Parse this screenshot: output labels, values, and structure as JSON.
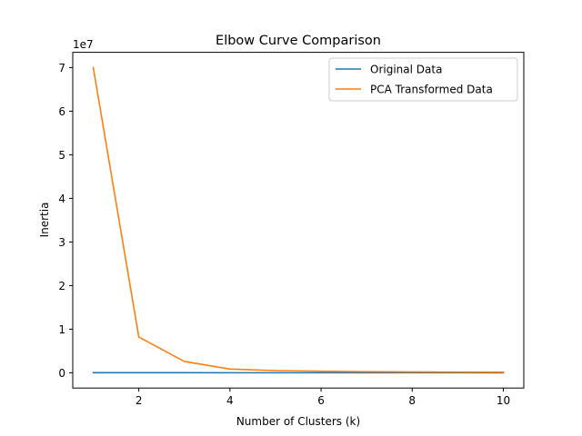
{
  "chart_data": {
    "type": "line",
    "title": "Elbow Curve Comparison",
    "xlabel": "Number of Clusters (k)",
    "ylabel": "Inertia",
    "y_offset_label": "1e7",
    "x": [
      1,
      2,
      3,
      4,
      5,
      6,
      7,
      8,
      9,
      10
    ],
    "xlim": [
      0.55,
      10.45
    ],
    "ylim": [
      -3500000,
      73500000
    ],
    "xticks": [
      2,
      4,
      6,
      8,
      10
    ],
    "yticks": [
      0,
      10000000,
      20000000,
      30000000,
      40000000,
      50000000,
      60000000,
      70000000
    ],
    "ytick_labels": [
      "0",
      "1",
      "2",
      "3",
      "4",
      "5",
      "6",
      "7"
    ],
    "grid": false,
    "legend_position": "upper right",
    "series": [
      {
        "name": "Original Data",
        "color": "#1f77b4",
        "values": [
          20000,
          12000,
          9000,
          7000,
          6000,
          5000,
          4500,
          4000,
          3500,
          3000
        ]
      },
      {
        "name": "PCA Transformed Data",
        "color": "#ff7f0e",
        "values": [
          70000000,
          8200000,
          2600000,
          850000,
          500000,
          350000,
          260000,
          200000,
          160000,
          130000
        ]
      }
    ]
  }
}
